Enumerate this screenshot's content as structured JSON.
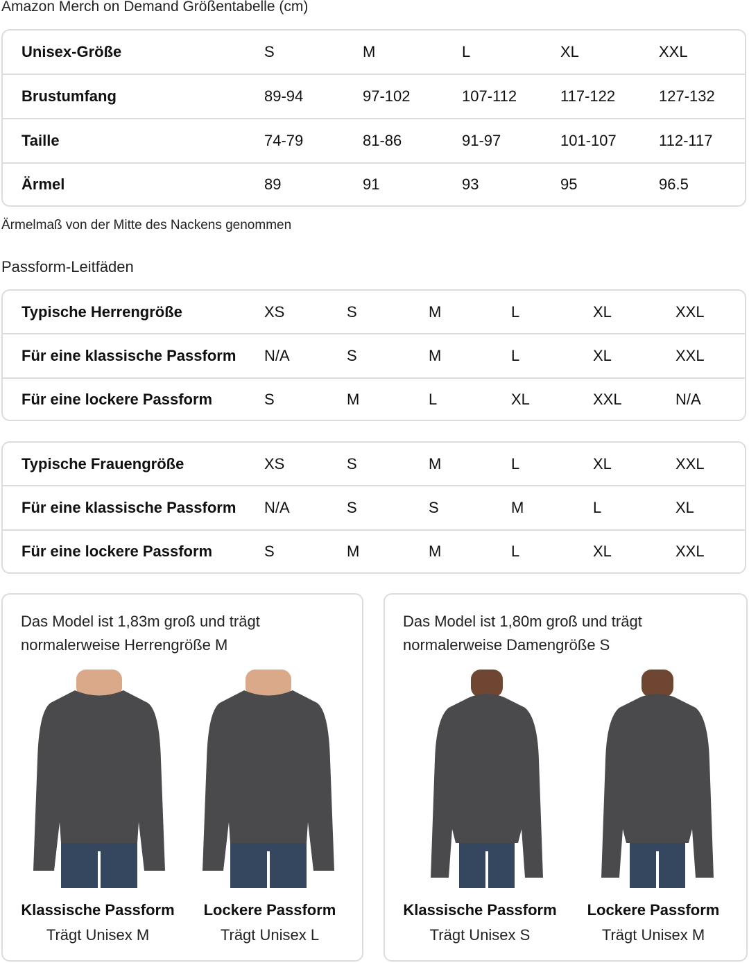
{
  "title": "Amazon Merch on Demand Größentabelle (cm)",
  "unisex_table": {
    "rows": [
      {
        "label": "Unisex-Größe",
        "values": [
          "S",
          "M",
          "L",
          "XL",
          "XXL"
        ]
      },
      {
        "label": "Brustumfang",
        "values": [
          "89-94",
          "97-102",
          "107-112",
          "117-122",
          "127-132"
        ]
      },
      {
        "label": "Taille",
        "values": [
          "74-79",
          "81-86",
          "91-97",
          "101-107",
          "112-117"
        ]
      },
      {
        "label": "Ärmel",
        "values": [
          "89",
          "91",
          "93",
          "95",
          "96.5"
        ]
      }
    ]
  },
  "note": "Ärmelmaß von der Mitte des Nackens genommen",
  "fit_title": "Passform-Leitfäden",
  "men_table": {
    "rows": [
      {
        "label": "Typische Herrengröße",
        "values": [
          "XS",
          "S",
          "M",
          "L",
          "XL",
          "XXL"
        ]
      },
      {
        "label": "Für eine klassische Passform",
        "values": [
          "N/A",
          "S",
          "M",
          "L",
          "XL",
          "XXL"
        ]
      },
      {
        "label": "Für eine lockere Passform",
        "values": [
          "S",
          "M",
          "L",
          "XL",
          "XXL",
          "N/A"
        ]
      }
    ]
  },
  "women_table": {
    "rows": [
      {
        "label": "Typische Frauengröße",
        "values": [
          "XS",
          "S",
          "M",
          "L",
          "XL",
          "XXL"
        ]
      },
      {
        "label": "Für eine klassische Passform",
        "values": [
          "N/A",
          "S",
          "S",
          "M",
          "L",
          "XL"
        ]
      },
      {
        "label": "Für eine lockere Passform",
        "values": [
          "S",
          "M",
          "M",
          "L",
          "XL",
          "XXL"
        ]
      }
    ]
  },
  "cards": [
    {
      "caption1": "Das Model ist 1,83m groß und trägt",
      "caption2": "normalerweise Herrengröße M",
      "figures": [
        {
          "name": "Klassische Passform",
          "sub": "Trägt Unisex M"
        },
        {
          "name": "Lockere Passform",
          "sub": "Trägt Unisex L"
        }
      ]
    },
    {
      "caption1": "Das Model ist 1,80m groß und trägt",
      "caption2": "normalerweise Damengröße S",
      "figures": [
        {
          "name": "Klassische Passform",
          "sub": "Trägt Unisex S"
        },
        {
          "name": "Lockere Passform",
          "sub": "Trägt Unisex M"
        }
      ]
    }
  ],
  "colors": {
    "border": "#dcdcdc",
    "sweater": "#4a4a4c",
    "jeans": "#34475f",
    "skin_men": "#d9a98a",
    "skin_women": "#6e4632"
  }
}
